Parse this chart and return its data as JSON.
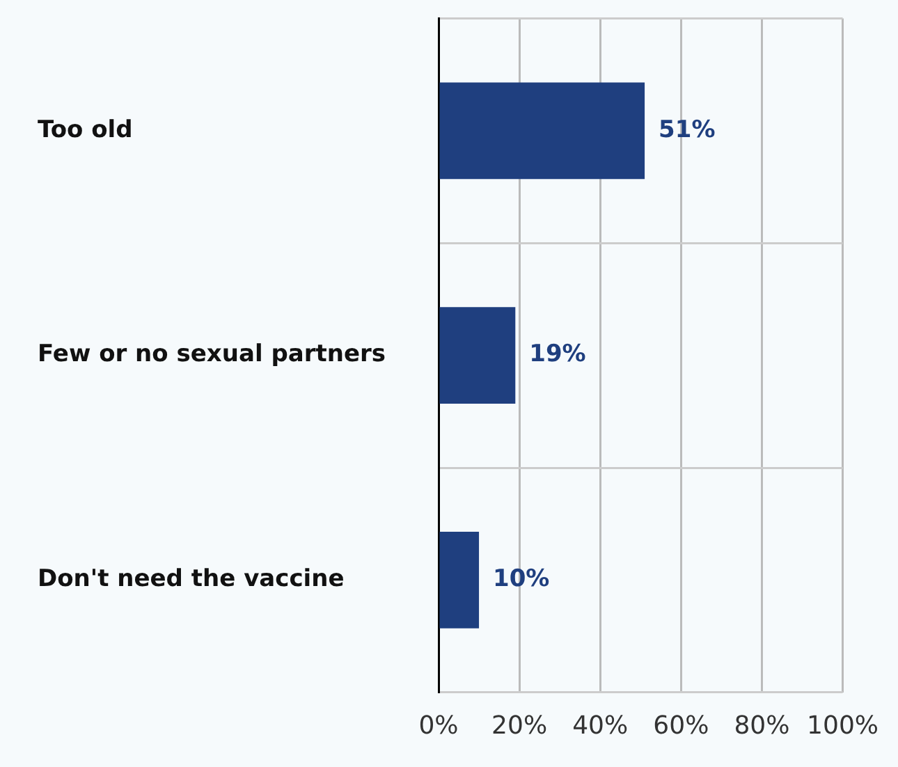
{
  "chart_data": {
    "type": "bar",
    "orientation": "horizontal",
    "categories": [
      "Too old",
      "Few or no sexual partners",
      "Don't need the vaccine"
    ],
    "values": [
      51,
      19,
      10
    ],
    "color": "#1f3f7f",
    "value_labels": [
      "51%",
      "19%",
      "10%"
    ],
    "xlim": [
      0,
      100
    ],
    "xticks": [
      {
        "value": 0,
        "label": "0%"
      },
      {
        "value": 20,
        "label": "20%"
      },
      {
        "value": 40,
        "label": "40%"
      },
      {
        "value": 60,
        "label": "60%"
      },
      {
        "value": 80,
        "label": "80%"
      },
      {
        "value": 100,
        "label": "100%"
      }
    ],
    "grid": true,
    "legend": false
  }
}
